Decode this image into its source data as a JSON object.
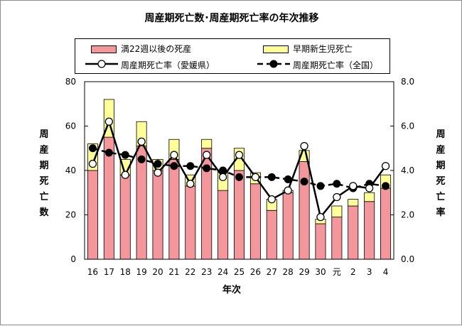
{
  "chart_data": {
    "type": "bar",
    "title": "周産期死亡数･周産期死亡率の年次推移",
    "xlabel": "年次",
    "ylabel_left": "周産期死亡数",
    "ylabel_right": "周産期死亡率",
    "categories": [
      "16",
      "17",
      "18",
      "19",
      "20",
      "21",
      "22",
      "23",
      "24",
      "25",
      "26",
      "27",
      "28",
      "29",
      "30",
      "元",
      "2",
      "3",
      "4"
    ],
    "ylim_left": [
      0,
      80
    ],
    "yticks_left": [
      "0",
      "20",
      "40",
      "60",
      "80"
    ],
    "ylim_right": [
      0,
      8
    ],
    "yticks_right": [
      "0.0",
      "2.0",
      "4.0",
      "6.0",
      "8.0"
    ],
    "grid": false,
    "legend_position": "top",
    "series": [
      {
        "name": "満22週以後の死産",
        "kind": "bar",
        "color": "#f4979c",
        "values": [
          40,
          55,
          38,
          51,
          40,
          45,
          33,
          50,
          31,
          40,
          34,
          22,
          30,
          44,
          16,
          19,
          24,
          26,
          32
        ]
      },
      {
        "name": "早期新生児死亡",
        "kind": "bar",
        "color": "#ffff99",
        "values": [
          12,
          17,
          7,
          11,
          5,
          9,
          5,
          4,
          9,
          10,
          5,
          5,
          1,
          5,
          2,
          5,
          3,
          4,
          6
        ]
      },
      {
        "name": "周産期死亡率（愛媛県）",
        "kind": "line",
        "axis": "right",
        "marker": "open-circle",
        "values": [
          4.3,
          6.2,
          3.8,
          5.3,
          3.9,
          4.7,
          3.4,
          4.7,
          3.7,
          4.7,
          3.7,
          2.7,
          3.1,
          5.1,
          1.9,
          2.8,
          3.3,
          3.2,
          4.2
        ]
      },
      {
        "name": "周産期死亡率（全国）",
        "kind": "line",
        "axis": "right",
        "marker": "filled-circle",
        "dashed": true,
        "values": [
          5.0,
          4.8,
          4.7,
          4.5,
          4.3,
          4.2,
          4.2,
          4.1,
          4.0,
          3.7,
          3.7,
          3.7,
          3.6,
          3.5,
          3.3,
          3.4,
          3.2,
          3.4,
          3.3
        ]
      }
    ]
  }
}
